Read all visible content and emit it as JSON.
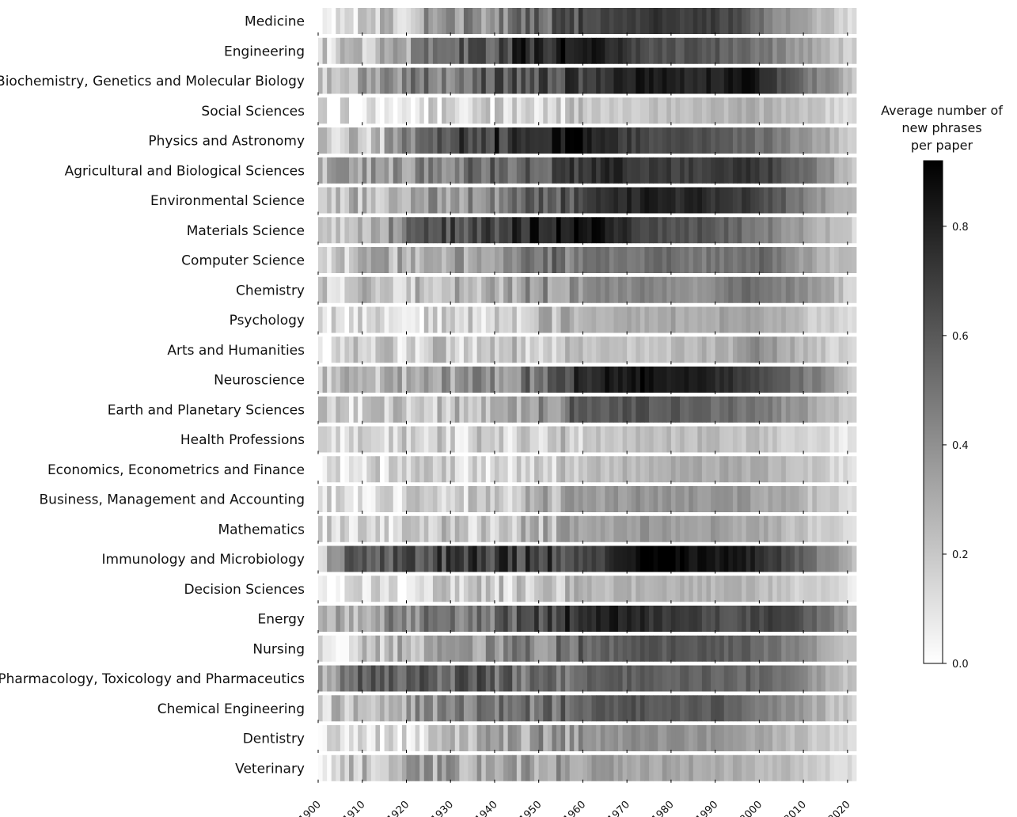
{
  "chart_data": {
    "type": "heatmap",
    "title": "",
    "xlabel": "",
    "ylabel": "",
    "x_range": [
      1900,
      2022
    ],
    "x_ticks": [
      "1900",
      "1910",
      "1920",
      "1930",
      "1940",
      "1950",
      "1960",
      "1970",
      "1980",
      "1990",
      "2000",
      "2010",
      "2020"
    ],
    "colorbar": {
      "title_lines": [
        "Average number of",
        "new phrases",
        "per paper"
      ],
      "range": [
        0.0,
        0.92
      ],
      "ticks": [
        "0.0",
        "0.2",
        "0.4",
        "0.6",
        "0.8"
      ],
      "colormap": "greys (white = low, black = high)"
    },
    "rows": [
      {
        "name": "Medicine",
        "anchors": [
          [
            1900,
            0.12
          ],
          [
            1920,
            0.22
          ],
          [
            1925,
            0.38
          ],
          [
            1940,
            0.4
          ],
          [
            1950,
            0.55
          ],
          [
            1960,
            0.62
          ],
          [
            1975,
            0.74
          ],
          [
            1985,
            0.7
          ],
          [
            1995,
            0.66
          ],
          [
            2000,
            0.5
          ],
          [
            2010,
            0.32
          ],
          [
            2022,
            0.12
          ]
        ]
      },
      {
        "name": "Engineering",
        "anchors": [
          [
            1900,
            0.15
          ],
          [
            1920,
            0.32
          ],
          [
            1925,
            0.55
          ],
          [
            1940,
            0.62
          ],
          [
            1948,
            0.78
          ],
          [
            1960,
            0.85
          ],
          [
            1965,
            0.8
          ],
          [
            1975,
            0.64
          ],
          [
            1990,
            0.6
          ],
          [
            2000,
            0.5
          ],
          [
            2010,
            0.35
          ],
          [
            2022,
            0.15
          ]
        ]
      },
      {
        "name": "Biochemistry, Genetics and Molecular Biology",
        "anchors": [
          [
            1900,
            0.25
          ],
          [
            1920,
            0.45
          ],
          [
            1940,
            0.58
          ],
          [
            1950,
            0.6
          ],
          [
            1960,
            0.68
          ],
          [
            1970,
            0.82
          ],
          [
            1990,
            0.8
          ],
          [
            1998,
            0.85
          ],
          [
            2005,
            0.65
          ],
          [
            2015,
            0.4
          ],
          [
            2022,
            0.22
          ]
        ]
      },
      {
        "name": "Social Sciences",
        "anchors": [
          [
            1900,
            0.08
          ],
          [
            1920,
            0.12
          ],
          [
            1940,
            0.14
          ],
          [
            1960,
            0.18
          ],
          [
            1980,
            0.22
          ],
          [
            1995,
            0.27
          ],
          [
            2000,
            0.28
          ],
          [
            2010,
            0.22
          ],
          [
            2022,
            0.1
          ]
        ]
      },
      {
        "name": "Physics and Astronomy",
        "anchors": [
          [
            1900,
            0.18
          ],
          [
            1915,
            0.25
          ],
          [
            1925,
            0.55
          ],
          [
            1930,
            0.7
          ],
          [
            1950,
            0.75
          ],
          [
            1958,
            0.88
          ],
          [
            1965,
            0.75
          ],
          [
            1980,
            0.62
          ],
          [
            1990,
            0.6
          ],
          [
            2000,
            0.52
          ],
          [
            2010,
            0.4
          ],
          [
            2022,
            0.18
          ]
        ]
      },
      {
        "name": "Agricultural and Biological Sciences",
        "anchors": [
          [
            1900,
            0.25
          ],
          [
            1920,
            0.4
          ],
          [
            1940,
            0.55
          ],
          [
            1955,
            0.62
          ],
          [
            1965,
            0.78
          ],
          [
            1975,
            0.72
          ],
          [
            1990,
            0.7
          ],
          [
            1998,
            0.78
          ],
          [
            2005,
            0.62
          ],
          [
            2015,
            0.4
          ],
          [
            2022,
            0.2
          ]
        ]
      },
      {
        "name": "Environmental Science",
        "anchors": [
          [
            1900,
            0.22
          ],
          [
            1920,
            0.3
          ],
          [
            1940,
            0.45
          ],
          [
            1955,
            0.6
          ],
          [
            1965,
            0.75
          ],
          [
            1975,
            0.8
          ],
          [
            1990,
            0.76
          ],
          [
            2000,
            0.68
          ],
          [
            2010,
            0.48
          ],
          [
            2022,
            0.22
          ]
        ]
      },
      {
        "name": "Materials Science",
        "anchors": [
          [
            1900,
            0.2
          ],
          [
            1915,
            0.3
          ],
          [
            1920,
            0.6
          ],
          [
            1935,
            0.65
          ],
          [
            1948,
            0.78
          ],
          [
            1958,
            0.92
          ],
          [
            1965,
            0.82
          ],
          [
            1975,
            0.66
          ],
          [
            1990,
            0.6
          ],
          [
            2000,
            0.5
          ],
          [
            2010,
            0.35
          ],
          [
            2022,
            0.15
          ]
        ]
      },
      {
        "name": "Computer Science",
        "anchors": [
          [
            1900,
            0.2
          ],
          [
            1920,
            0.28
          ],
          [
            1930,
            0.35
          ],
          [
            1945,
            0.42
          ],
          [
            1950,
            0.5
          ],
          [
            1960,
            0.5
          ],
          [
            1980,
            0.52
          ],
          [
            1990,
            0.48
          ],
          [
            2000,
            0.55
          ],
          [
            2010,
            0.35
          ],
          [
            2022,
            0.18
          ]
        ]
      },
      {
        "name": "Chemistry",
        "anchors": [
          [
            1900,
            0.2
          ],
          [
            1920,
            0.22
          ],
          [
            1940,
            0.3
          ],
          [
            1960,
            0.42
          ],
          [
            1975,
            0.44
          ],
          [
            1985,
            0.4
          ],
          [
            1995,
            0.52
          ],
          [
            2005,
            0.48
          ],
          [
            2015,
            0.3
          ],
          [
            2022,
            0.15
          ]
        ]
      },
      {
        "name": "Psychology",
        "anchors": [
          [
            1900,
            0.1
          ],
          [
            1920,
            0.14
          ],
          [
            1940,
            0.17
          ],
          [
            1960,
            0.25
          ],
          [
            1970,
            0.3
          ],
          [
            1990,
            0.33
          ],
          [
            2000,
            0.32
          ],
          [
            2010,
            0.22
          ],
          [
            2022,
            0.1
          ]
        ]
      },
      {
        "name": "Arts and Humanities",
        "anchors": [
          [
            1900,
            0.12
          ],
          [
            1920,
            0.18
          ],
          [
            1940,
            0.18
          ],
          [
            1960,
            0.2
          ],
          [
            1980,
            0.23
          ],
          [
            1995,
            0.3
          ],
          [
            2000,
            0.42
          ],
          [
            2005,
            0.32
          ],
          [
            2015,
            0.2
          ],
          [
            2022,
            0.1
          ]
        ]
      },
      {
        "name": "Neuroscience",
        "anchors": [
          [
            1900,
            0.2
          ],
          [
            1920,
            0.3
          ],
          [
            1940,
            0.4
          ],
          [
            1955,
            0.62
          ],
          [
            1965,
            0.82
          ],
          [
            1975,
            0.88
          ],
          [
            1985,
            0.8
          ],
          [
            1995,
            0.72
          ],
          [
            2005,
            0.6
          ],
          [
            2015,
            0.4
          ],
          [
            2022,
            0.2
          ]
        ]
      },
      {
        "name": "Earth and Planetary Sciences",
        "anchors": [
          [
            1900,
            0.15
          ],
          [
            1920,
            0.2
          ],
          [
            1940,
            0.28
          ],
          [
            1955,
            0.45
          ],
          [
            1958,
            0.58
          ],
          [
            1970,
            0.62
          ],
          [
            1985,
            0.58
          ],
          [
            2000,
            0.48
          ],
          [
            2010,
            0.35
          ],
          [
            2022,
            0.15
          ]
        ]
      },
      {
        "name": "Health Professions",
        "anchors": [
          [
            1900,
            0.08
          ],
          [
            1920,
            0.14
          ],
          [
            1940,
            0.16
          ],
          [
            1960,
            0.2
          ],
          [
            1975,
            0.23
          ],
          [
            1990,
            0.25
          ],
          [
            2000,
            0.22
          ],
          [
            2010,
            0.16
          ],
          [
            2022,
            0.08
          ]
        ]
      },
      {
        "name": "Economics, Econometrics and Finance",
        "anchors": [
          [
            1900,
            0.06
          ],
          [
            1920,
            0.15
          ],
          [
            1940,
            0.17
          ],
          [
            1960,
            0.22
          ],
          [
            1975,
            0.28
          ],
          [
            1990,
            0.32
          ],
          [
            2000,
            0.3
          ],
          [
            2010,
            0.22
          ],
          [
            2022,
            0.08
          ]
        ]
      },
      {
        "name": "Business, Management and Accounting",
        "anchors": [
          [
            1900,
            0.1
          ],
          [
            1920,
            0.15
          ],
          [
            1940,
            0.2
          ],
          [
            1955,
            0.3
          ],
          [
            1970,
            0.38
          ],
          [
            1980,
            0.4
          ],
          [
            1995,
            0.38
          ],
          [
            2005,
            0.3
          ],
          [
            2022,
            0.12
          ]
        ]
      },
      {
        "name": "Mathematics",
        "anchors": [
          [
            1900,
            0.12
          ],
          [
            1920,
            0.18
          ],
          [
            1940,
            0.22
          ],
          [
            1960,
            0.3
          ],
          [
            1975,
            0.38
          ],
          [
            1990,
            0.36
          ],
          [
            2000,
            0.3
          ],
          [
            2010,
            0.22
          ],
          [
            2022,
            0.12
          ]
        ]
      },
      {
        "name": "Immunology and Microbiology",
        "anchors": [
          [
            1900,
            0.15
          ],
          [
            1905,
            0.55
          ],
          [
            1920,
            0.62
          ],
          [
            1935,
            0.7
          ],
          [
            1950,
            0.68
          ],
          [
            1965,
            0.7
          ],
          [
            1975,
            0.92
          ],
          [
            1990,
            0.86
          ],
          [
            2000,
            0.78
          ],
          [
            2010,
            0.55
          ],
          [
            2022,
            0.25
          ]
        ]
      },
      {
        "name": "Decision Sciences",
        "anchors": [
          [
            1900,
            0.05
          ],
          [
            1920,
            0.12
          ],
          [
            1940,
            0.18
          ],
          [
            1960,
            0.25
          ],
          [
            1980,
            0.28
          ],
          [
            2000,
            0.25
          ],
          [
            2010,
            0.18
          ],
          [
            2022,
            0.1
          ]
        ]
      },
      {
        "name": "Energy",
        "anchors": [
          [
            1900,
            0.2
          ],
          [
            1920,
            0.45
          ],
          [
            1940,
            0.52
          ],
          [
            1950,
            0.62
          ],
          [
            1960,
            0.78
          ],
          [
            1968,
            0.82
          ],
          [
            1980,
            0.7
          ],
          [
            1995,
            0.62
          ],
          [
            2005,
            0.7
          ],
          [
            2015,
            0.5
          ],
          [
            2022,
            0.25
          ]
        ]
      },
      {
        "name": "Nursing",
        "anchors": [
          [
            1900,
            0.1
          ],
          [
            1920,
            0.3
          ],
          [
            1940,
            0.38
          ],
          [
            1960,
            0.52
          ],
          [
            1975,
            0.62
          ],
          [
            1990,
            0.58
          ],
          [
            2000,
            0.55
          ],
          [
            2010,
            0.4
          ],
          [
            2022,
            0.18
          ]
        ]
      },
      {
        "name": "Pharmacology, Toxicology and Pharmaceutics",
        "anchors": [
          [
            1900,
            0.3
          ],
          [
            1910,
            0.55
          ],
          [
            1920,
            0.55
          ],
          [
            1935,
            0.6
          ],
          [
            1950,
            0.5
          ],
          [
            1960,
            0.58
          ],
          [
            1980,
            0.58
          ],
          [
            2000,
            0.55
          ],
          [
            2010,
            0.4
          ],
          [
            2022,
            0.2
          ]
        ]
      },
      {
        "name": "Chemical Engineering",
        "anchors": [
          [
            1900,
            0.15
          ],
          [
            1920,
            0.35
          ],
          [
            1940,
            0.45
          ],
          [
            1960,
            0.55
          ],
          [
            1970,
            0.62
          ],
          [
            1990,
            0.6
          ],
          [
            2000,
            0.5
          ],
          [
            2010,
            0.35
          ],
          [
            2022,
            0.15
          ]
        ]
      },
      {
        "name": "Dentistry",
        "anchors": [
          [
            1900,
            0.08
          ],
          [
            1920,
            0.15
          ],
          [
            1935,
            0.25
          ],
          [
            1950,
            0.35
          ],
          [
            1970,
            0.4
          ],
          [
            1990,
            0.38
          ],
          [
            2000,
            0.3
          ],
          [
            2010,
            0.22
          ],
          [
            2022,
            0.1
          ]
        ]
      },
      {
        "name": "Veterinary",
        "anchors": [
          [
            1900,
            0.12
          ],
          [
            1920,
            0.35
          ],
          [
            1940,
            0.28
          ],
          [
            1960,
            0.35
          ],
          [
            1980,
            0.33
          ],
          [
            2000,
            0.28
          ],
          [
            2010,
            0.2
          ],
          [
            2022,
            0.1
          ]
        ]
      }
    ]
  }
}
